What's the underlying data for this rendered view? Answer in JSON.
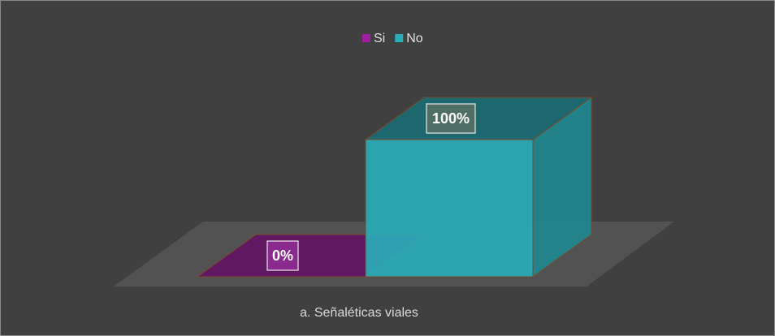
{
  "chart_data": {
    "type": "bar3d",
    "categories": [
      "a. Señaléticas viales"
    ],
    "series": [
      {
        "name": "Si",
        "color": "#a01ea3",
        "values": [
          0
        ],
        "value_labels": [
          "0%"
        ]
      },
      {
        "name": "No",
        "color": "#2aadb8",
        "values": [
          100
        ],
        "value_labels": [
          "100%"
        ]
      }
    ],
    "ylim": [
      0,
      100
    ],
    "legend": "top"
  }
}
